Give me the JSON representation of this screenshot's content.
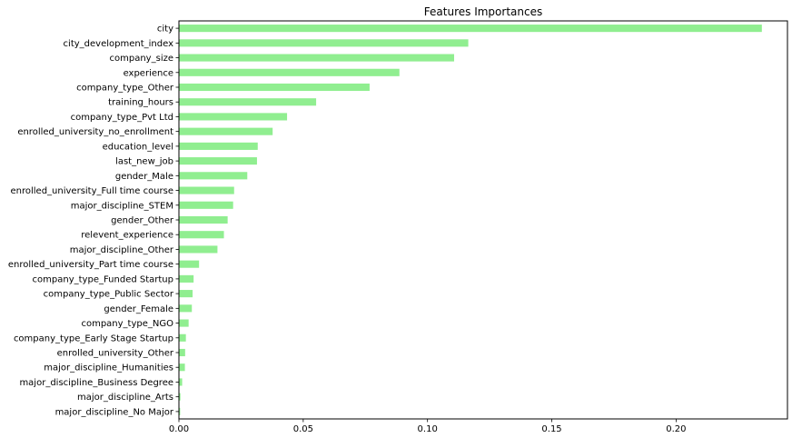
{
  "chart_data": {
    "type": "bar",
    "orientation": "horizontal",
    "title": "Features Importances",
    "xlabel": "",
    "ylabel": "",
    "bar_color": "#90ee90",
    "grid": false,
    "legend": false,
    "xlim": [
      0,
      0.2448
    ],
    "xticks": [
      0.0,
      0.05,
      0.1,
      0.15,
      0.2
    ],
    "xtick_labels": [
      "0.00",
      "0.05",
      "0.10",
      "0.15",
      "0.20"
    ],
    "categories": [
      "city",
      "city_development_index",
      "company_size",
      "experience",
      "company_type_Other",
      "training_hours",
      "company_type_Pvt Ltd",
      "enrolled_university_no_enrollment",
      "education_level",
      "last_new_job",
      "gender_Male",
      "enrolled_university_Full time course",
      "major_discipline_STEM",
      "gender_Other",
      "relevent_experience",
      "major_discipline_Other",
      "enrolled_university_Part time course",
      "company_type_Funded Startup",
      "company_type_Public Sector",
      "gender_Female",
      "company_type_NGO",
      "company_type_Early Stage Startup",
      "enrolled_university_Other",
      "major_discipline_Humanities",
      "major_discipline_Business Degree",
      "major_discipline_Arts",
      "major_discipline_No Major"
    ],
    "values": [
      0.2345,
      0.1164,
      0.1107,
      0.0887,
      0.0767,
      0.0552,
      0.0435,
      0.0377,
      0.0317,
      0.0314,
      0.0275,
      0.0222,
      0.0218,
      0.0196,
      0.0181,
      0.0155,
      0.0081,
      0.0059,
      0.0055,
      0.0052,
      0.0039,
      0.0028,
      0.0025,
      0.0024,
      0.0013,
      0.0006,
      0.0005
    ]
  }
}
